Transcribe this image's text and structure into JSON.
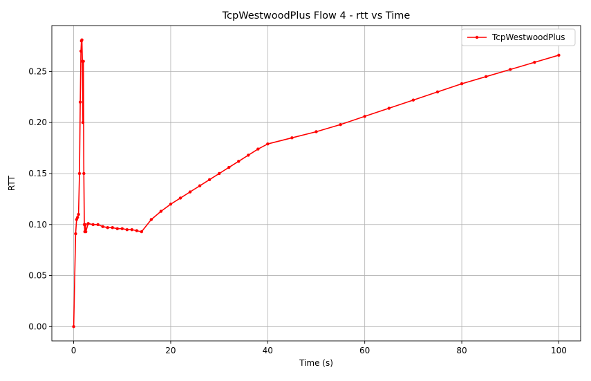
{
  "chart_data": {
    "type": "line",
    "title": "TcpWestwoodPlus Flow 4 - rtt vs Time",
    "xlabel": "Time (s)",
    "ylabel": "RTT",
    "xlim": [
      -4.5,
      104.5
    ],
    "ylim": [
      -0.014,
      0.295
    ],
    "xticks": [
      0,
      20,
      40,
      60,
      80,
      100
    ],
    "xtick_labels": [
      "0",
      "20",
      "40",
      "60",
      "80",
      "100"
    ],
    "yticks": [
      0.0,
      0.05,
      0.1,
      0.15,
      0.2,
      0.25
    ],
    "ytick_labels": [
      "0.00",
      "0.05",
      "0.10",
      "0.15",
      "0.20",
      "0.25"
    ],
    "grid": true,
    "legend_position": "top-right",
    "series": [
      {
        "name": "TcpWestwoodPlus",
        "color": "#ff0000",
        "marker": "circle",
        "x": [
          0,
          0.4,
          0.6,
          0.8,
          1.0,
          1.2,
          1.35,
          1.5,
          1.6,
          1.7,
          1.8,
          1.9,
          2.0,
          2.1,
          2.2,
          2.3,
          2.4,
          2.5,
          3,
          4,
          5,
          6,
          7,
          8,
          9,
          10,
          11,
          12,
          13,
          14,
          16,
          18,
          20,
          22,
          24,
          26,
          28,
          30,
          32,
          34,
          36,
          38,
          40,
          45,
          50,
          55,
          60,
          65,
          70,
          75,
          80,
          85,
          90,
          95,
          100
        ],
        "y": [
          0.0,
          0.091,
          0.105,
          0.107,
          0.11,
          0.15,
          0.22,
          0.27,
          0.28,
          0.281,
          0.26,
          0.2,
          0.26,
          0.15,
          0.1,
          0.093,
          0.1,
          0.093,
          0.101,
          0.1,
          0.1,
          0.098,
          0.097,
          0.097,
          0.096,
          0.096,
          0.095,
          0.095,
          0.094,
          0.093,
          0.105,
          0.113,
          0.12,
          0.126,
          0.132,
          0.138,
          0.144,
          0.15,
          0.156,
          0.162,
          0.168,
          0.174,
          0.179,
          0.185,
          0.191,
          0.198,
          0.206,
          0.214,
          0.222,
          0.23,
          0.238,
          0.245,
          0.252,
          0.259,
          0.266
        ]
      }
    ]
  }
}
